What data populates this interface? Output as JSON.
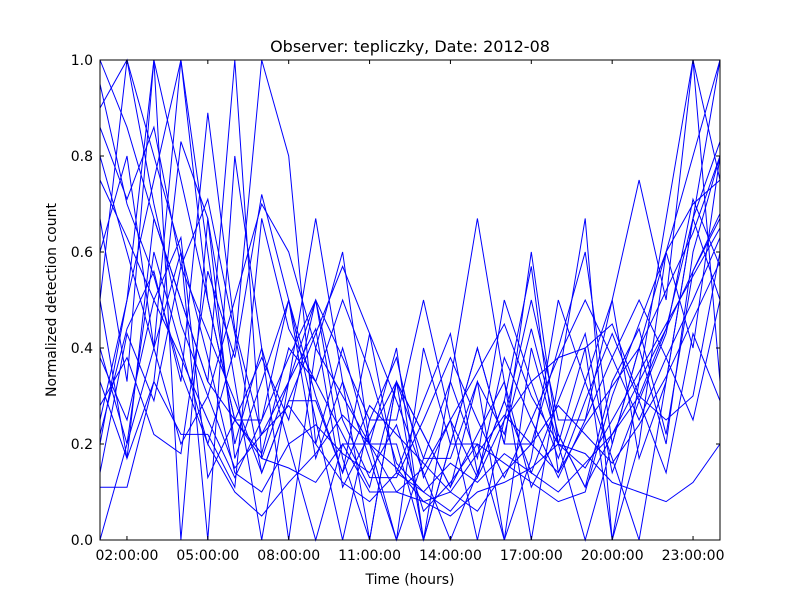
{
  "chart_data": {
    "type": "line",
    "title": "Observer: tepliczky, Date: 2012-08",
    "xlabel": "Time (hours)",
    "ylabel": "Normalized detection count",
    "x": [
      "01:00:00",
      "02:00:00",
      "03:00:00",
      "04:00:00",
      "05:00:00",
      "06:00:00",
      "07:00:00",
      "08:00:00",
      "09:00:00",
      "10:00:00",
      "11:00:00",
      "12:00:00",
      "13:00:00",
      "14:00:00",
      "15:00:00",
      "16:00:00",
      "17:00:00",
      "18:00:00",
      "19:00:00",
      "20:00:00",
      "21:00:00",
      "22:00:00",
      "23:00:00",
      "24:00:00"
    ],
    "xticks": [
      "02:00:00",
      "05:00:00",
      "08:00:00",
      "11:00:00",
      "14:00:00",
      "17:00:00",
      "20:00:00",
      "23:00:00"
    ],
    "yticks": [
      "0.0",
      "0.2",
      "0.4",
      "0.6",
      "0.8",
      "1.0"
    ],
    "ylim": [
      0,
      1
    ],
    "grid": false,
    "line_color": "#0000ff",
    "series": [
      {
        "values": [
          1.0,
          0.86,
          0.67,
          0.5,
          0.33,
          0.25,
          0.17,
          0.15,
          0.12,
          0.2,
          0.1,
          0.1,
          0.08,
          0.05,
          0.1,
          0.12,
          0.15,
          0.2,
          0.18,
          0.12,
          0.1,
          0.08,
          0.12,
          0.2
        ]
      },
      {
        "values": [
          0.2,
          0.5,
          1.0,
          0.75,
          0.5,
          0.25,
          0.18,
          0.4,
          0.33,
          0.5,
          0.35,
          0.16,
          0.1,
          0.06,
          0.13,
          0.25,
          0.33,
          0.38,
          0.4,
          0.45,
          0.3,
          0.25,
          0.3,
          0.6
        ]
      },
      {
        "values": [
          0.5,
          1.0,
          0.8,
          0.6,
          0.38,
          0.14,
          0.1,
          0.2,
          0.24,
          0.18,
          0.14,
          0.24,
          0.06,
          0.12,
          0.2,
          0.16,
          0.12,
          0.08,
          0.1,
          0.3,
          0.45,
          0.6,
          0.7,
          0.75
        ]
      },
      {
        "values": [
          0.11,
          0.11,
          0.33,
          0.22,
          0.22,
          0.11,
          0.67,
          0.44,
          0.33,
          0.22,
          0.11,
          0.33,
          0.22,
          0.11,
          0.22,
          0.33,
          0.11,
          0.22,
          0.11,
          0.22,
          0.33,
          0.44,
          0.67,
          1.0
        ]
      },
      {
        "values": [
          0.25,
          0.5,
          0.75,
          1.0,
          0.5,
          0.25,
          0.25,
          0.5,
          0.25,
          0.0,
          0.25,
          0.25,
          0.5,
          0.25,
          0.0,
          0.25,
          0.5,
          0.25,
          0.25,
          0.5,
          0.75,
          0.5,
          1.0,
          0.75
        ]
      },
      {
        "values": [
          0.0,
          0.2,
          0.4,
          0.6,
          0.0,
          0.8,
          0.4,
          0.2,
          0.0,
          0.2,
          0.2,
          0.0,
          0.4,
          0.2,
          0.2,
          0.0,
          0.4,
          0.2,
          0.0,
          0.2,
          0.4,
          0.6,
          0.8,
          1.0
        ]
      },
      {
        "values": [
          0.33,
          0.17,
          0.67,
          0.5,
          0.33,
          1.0,
          0.17,
          0.33,
          0.5,
          0.17,
          0.0,
          0.33,
          0.17,
          0.17,
          0.33,
          0.0,
          0.17,
          0.5,
          0.33,
          0.17,
          0.0,
          0.33,
          0.67,
          0.5
        ]
      },
      {
        "values": [
          0.86,
          0.71,
          0.86,
          0.57,
          0.43,
          0.29,
          0.14,
          0.29,
          0.43,
          0.57,
          0.43,
          0.29,
          0.14,
          0.0,
          0.14,
          0.29,
          0.14,
          0.29,
          0.43,
          0.14,
          0.29,
          0.43,
          0.71,
          0.57
        ]
      },
      {
        "values": [
          0.6,
          0.8,
          0.4,
          1.0,
          0.6,
          0.2,
          0.4,
          0.0,
          0.4,
          0.6,
          0.2,
          0.2,
          0.0,
          0.2,
          0.4,
          0.2,
          0.6,
          0.2,
          0.4,
          0.0,
          0.2,
          0.6,
          0.4,
          0.8
        ]
      },
      {
        "values": [
          0.14,
          0.43,
          0.29,
          0.57,
          0.71,
          0.43,
          0.14,
          0.29,
          0.29,
          0.14,
          0.43,
          0.14,
          0.29,
          0.43,
          0.14,
          0.29,
          0.57,
          0.14,
          0.29,
          0.43,
          0.29,
          0.14,
          0.43,
          0.29
        ]
      },
      {
        "values": [
          0.4,
          0.2,
          0.6,
          0.4,
          0.2,
          0.4,
          1.0,
          0.8,
          0.2,
          0.4,
          0.2,
          0.4,
          0.0,
          0.2,
          0.4,
          0.2,
          0.2,
          0.4,
          0.6,
          0.2,
          0.4,
          0.2,
          0.6,
          0.8
        ]
      },
      {
        "values": [
          0.9,
          1.0,
          0.7,
          0.45,
          0.3,
          0.15,
          0.22,
          0.28,
          0.2,
          0.12,
          0.08,
          0.14,
          0.1,
          0.16,
          0.12,
          0.18,
          0.14,
          0.1,
          0.16,
          0.22,
          0.3,
          0.44,
          0.56,
          0.68
        ]
      },
      {
        "values": [
          0.28,
          0.38,
          0.22,
          0.18,
          0.56,
          0.38,
          0.72,
          0.5,
          0.3,
          0.14,
          0.28,
          0.22,
          0.16,
          0.1,
          0.18,
          0.26,
          0.2,
          0.14,
          0.24,
          0.32,
          0.4,
          0.52,
          0.64,
          0.8
        ]
      },
      {
        "values": [
          0.67,
          0.33,
          1.0,
          0.0,
          0.67,
          0.33,
          0.0,
          0.33,
          0.67,
          0.33,
          0.0,
          0.33,
          0.0,
          0.33,
          0.67,
          0.33,
          0.0,
          0.33,
          0.67,
          0.0,
          0.33,
          0.67,
          1.0,
          0.33
        ]
      },
      {
        "values": [
          0.75,
          0.63,
          0.5,
          0.38,
          0.25,
          0.13,
          0.25,
          0.38,
          0.5,
          0.25,
          0.13,
          0.13,
          0.25,
          0.38,
          0.25,
          0.13,
          0.25,
          0.38,
          0.5,
          0.38,
          0.25,
          0.38,
          0.5,
          0.63
        ]
      },
      {
        "values": [
          0.5,
          0.17,
          0.33,
          0.83,
          0.67,
          0.17,
          0.33,
          0.5,
          0.17,
          0.33,
          0.17,
          0.0,
          0.17,
          0.33,
          0.17,
          0.5,
          0.33,
          0.17,
          0.33,
          0.5,
          0.17,
          0.33,
          0.67,
          0.83
        ]
      },
      {
        "values": [
          0.22,
          0.44,
          0.56,
          0.33,
          0.89,
          0.44,
          0.22,
          0.33,
          0.44,
          0.11,
          0.22,
          0.33,
          0.22,
          0.11,
          0.33,
          0.22,
          0.44,
          0.22,
          0.11,
          0.33,
          0.44,
          0.22,
          0.56,
          0.67
        ]
      },
      {
        "values": [
          0.8,
          0.6,
          0.4,
          0.2,
          0.3,
          0.5,
          0.7,
          0.6,
          0.4,
          0.3,
          0.2,
          0.1,
          0.15,
          0.25,
          0.35,
          0.45,
          0.3,
          0.2,
          0.15,
          0.25,
          0.35,
          0.45,
          0.55,
          0.65
        ]
      },
      {
        "values": [
          0.38,
          0.25,
          0.5,
          0.63,
          0.13,
          0.25,
          0.38,
          0.25,
          0.5,
          0.38,
          0.25,
          0.38,
          0.13,
          0.25,
          0.13,
          0.38,
          0.25,
          0.13,
          0.25,
          0.38,
          0.5,
          0.38,
          0.25,
          0.5
        ]
      },
      {
        "values": [
          0.95,
          0.7,
          0.55,
          0.35,
          0.2,
          0.1,
          0.05,
          0.12,
          0.18,
          0.26,
          0.2,
          0.15,
          0.08,
          0.1,
          0.06,
          0.14,
          0.2,
          0.28,
          0.22,
          0.16,
          0.24,
          0.34,
          0.46,
          0.58
        ]
      }
    ]
  }
}
